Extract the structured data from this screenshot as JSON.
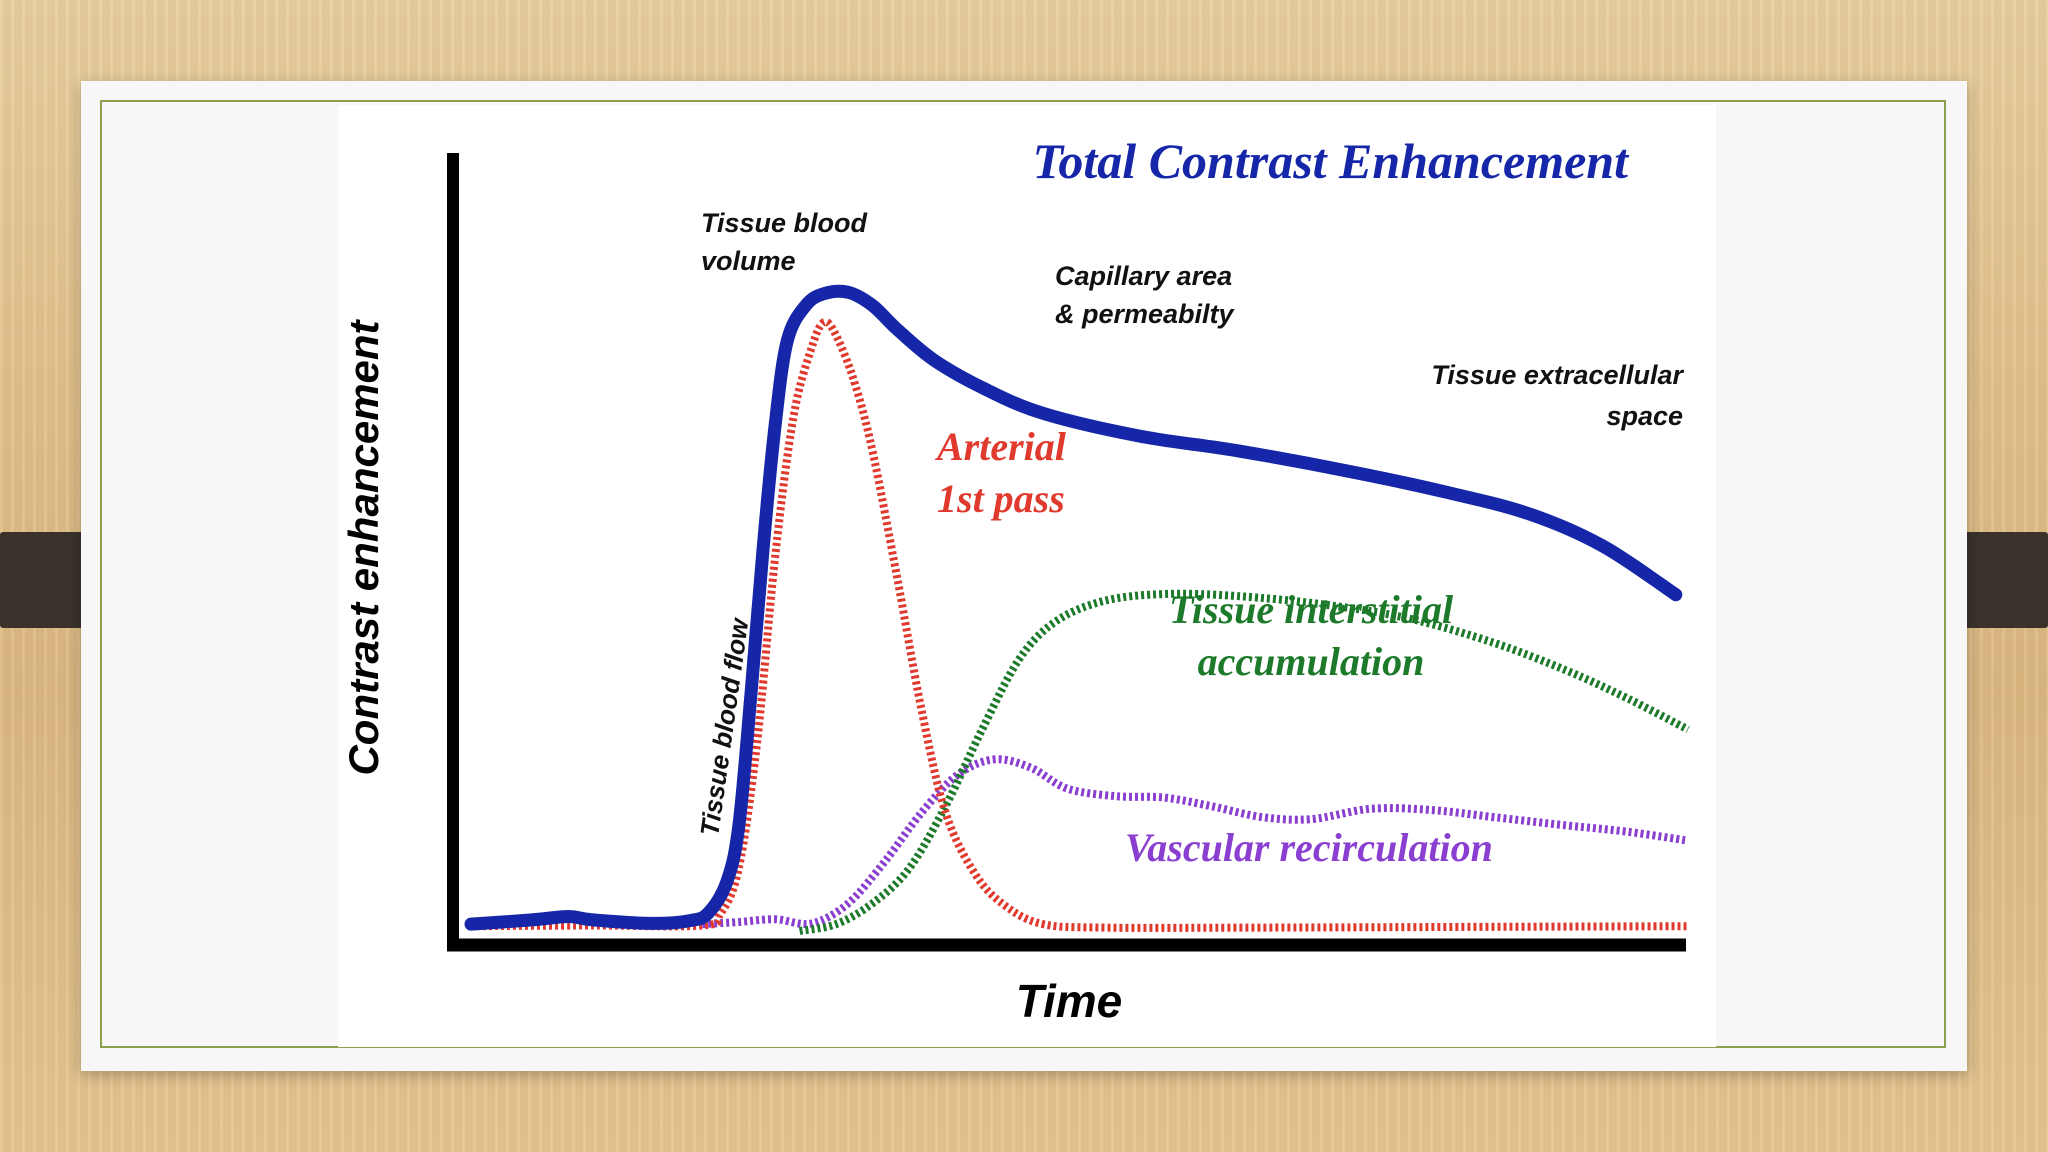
{
  "chart_data": {
    "type": "line",
    "title": "Total Contrast Enhancement",
    "xlabel": "Time",
    "ylabel": "Contrast enhancement",
    "xlim": [
      0,
      100
    ],
    "ylim": [
      0,
      100
    ],
    "grid": false,
    "legend": "none",
    "series": [
      {
        "name": "Total Contrast Enhancement",
        "color": "#1527a8",
        "style": "solid",
        "points": [
          [
            0,
            2
          ],
          [
            5,
            2.6
          ],
          [
            8,
            3.1
          ],
          [
            10,
            2.6
          ],
          [
            15,
            2.1
          ],
          [
            18,
            2.5
          ],
          [
            19.5,
            3.6
          ],
          [
            21,
            8
          ],
          [
            22,
            16
          ],
          [
            23,
            35
          ],
          [
            24,
            56
          ],
          [
            25,
            74
          ],
          [
            26,
            86
          ],
          [
            27.5,
            91
          ],
          [
            29,
            92.7
          ],
          [
            31,
            92.9
          ],
          [
            33,
            91
          ],
          [
            35,
            87.6
          ],
          [
            38,
            83.2
          ],
          [
            42,
            79.2
          ],
          [
            47,
            75.5
          ],
          [
            55,
            72.2
          ],
          [
            63,
            70.1
          ],
          [
            72,
            67.2
          ],
          [
            80,
            64.2
          ],
          [
            87,
            61
          ],
          [
            93,
            56.4
          ],
          [
            99,
            49.4
          ]
        ]
      },
      {
        "name": "Arterial 1st pass",
        "color": "#e03a2e",
        "style": "dotted",
        "points": [
          [
            0,
            1.7
          ],
          [
            10,
            1.8
          ],
          [
            19,
            1.8
          ],
          [
            20.5,
            3.5
          ],
          [
            22,
            10
          ],
          [
            23.5,
            28
          ],
          [
            25,
            55
          ],
          [
            26.5,
            75
          ],
          [
            28,
            85
          ],
          [
            29,
            88.6
          ],
          [
            30,
            86.7
          ],
          [
            31.5,
            80
          ],
          [
            33,
            70
          ],
          [
            35,
            52
          ],
          [
            37,
            33
          ],
          [
            39,
            18
          ],
          [
            41.5,
            9
          ],
          [
            44,
            4.5
          ],
          [
            47,
            2
          ],
          [
            52,
            1.5
          ],
          [
            65,
            1.5
          ],
          [
            100,
            1.7
          ]
        ]
      },
      {
        "name": "Tissue interstitial accumulation",
        "color": "#1d7a2a",
        "style": "dotted",
        "points": [
          [
            27,
            1
          ],
          [
            30,
            2
          ],
          [
            33,
            5
          ],
          [
            36,
            10
          ],
          [
            39,
            19
          ],
          [
            42,
            30
          ],
          [
            45,
            40
          ],
          [
            48,
            45.5
          ],
          [
            52,
            48.5
          ],
          [
            57,
            49.5
          ],
          [
            63,
            49.2
          ],
          [
            70,
            48
          ],
          [
            77,
            46
          ],
          [
            84,
            42.5
          ],
          [
            90,
            38.5
          ],
          [
            95,
            34.5
          ],
          [
            100,
            30
          ]
        ]
      },
      {
        "name": "Vascular recirculation",
        "color": "#8a3fd0",
        "style": "dotted",
        "points": [
          [
            19,
            2
          ],
          [
            22,
            2.3
          ],
          [
            25,
            2.7
          ],
          [
            28,
            2.1
          ],
          [
            31,
            5
          ],
          [
            34,
            11
          ],
          [
            37,
            18
          ],
          [
            40,
            23.5
          ],
          [
            43,
            25.7
          ],
          [
            46,
            24.5
          ],
          [
            49,
            21.5
          ],
          [
            53,
            20.4
          ],
          [
            57,
            20.2
          ],
          [
            61,
            18.9
          ],
          [
            65,
            17.4
          ],
          [
            69,
            17.1
          ],
          [
            74,
            18.6
          ],
          [
            79,
            18.4
          ],
          [
            84,
            17.4
          ],
          [
            90,
            16.2
          ],
          [
            95,
            15.3
          ],
          [
            100,
            14
          ]
        ]
      }
    ],
    "annotations": [
      {
        "text": "Tissue blood\nvolume",
        "color": "#111111"
      },
      {
        "text": "Capillary area\n& permeabilty",
        "color": "#111111"
      },
      {
        "text": "Tissue extracellular\nspace",
        "color": "#111111"
      },
      {
        "text": "Arterial\n1st pass",
        "color": "#e03a2e"
      },
      {
        "text": "Tissue interstitial\naccumulation",
        "color": "#1d7a2a"
      },
      {
        "text": "Vascular recirculation",
        "color": "#8a3fd0"
      },
      {
        "text": "Tissue blood flow",
        "color": "#111111"
      }
    ],
    "colors": {
      "title": "#1527a8",
      "axis": "#000000"
    }
  }
}
